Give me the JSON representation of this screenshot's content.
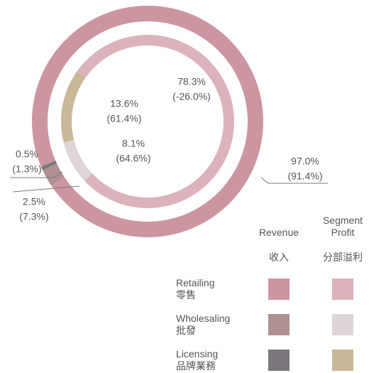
{
  "chart_data": {
    "type": "donut",
    "categories": [
      "Retailing",
      "Wholesaling",
      "Licensing"
    ],
    "categories_zh": [
      "零售",
      "批發",
      "品牌業務"
    ],
    "series": [
      {
        "name": "Revenue",
        "name_zh": "收入",
        "ring": "outer",
        "colors": [
          "#cc96a0",
          "#b09090",
          "#7a767b"
        ],
        "values": [
          97.0,
          2.5,
          0.5
        ],
        "value_labels": [
          "97.0%",
          "2.5%",
          "0.5%"
        ],
        "comparison_values": [
          91.4,
          7.3,
          1.3
        ],
        "comparison_labels": [
          "(91.4%)",
          "(7.3%)",
          "(1.3%)"
        ]
      },
      {
        "name": "Segment Profit",
        "name_zh": "分部溢利",
        "ring": "inner",
        "colors": [
          "#ddb3bb",
          "#ddd5d8",
          "#c8b898"
        ],
        "values": [
          78.3,
          8.1,
          13.6
        ],
        "value_labels": [
          "78.3%",
          "8.1%",
          "13.6%"
        ],
        "comparison_values": [
          -26.0,
          64.6,
          61.4
        ],
        "comparison_labels": [
          "(-26.0%)",
          "(64.6%)",
          "(61.4%)"
        ]
      }
    ]
  }
}
